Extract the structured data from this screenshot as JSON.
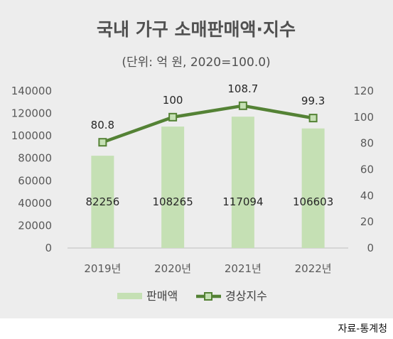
{
  "chart_data": {
    "type": "bar",
    "title": "국내 가구 소매판매액·지수",
    "subtitle": "(단위: 억 원, 2020=100.0)",
    "categories": [
      "2019년",
      "2020년",
      "2021년",
      "2022년"
    ],
    "series": [
      {
        "name": "판매액",
        "kind": "bar",
        "axis": "left",
        "color": "#c5e0b4",
        "values": [
          82256,
          108265,
          117094,
          106603
        ],
        "labels": [
          "82256",
          "108265",
          "117094",
          "106603"
        ]
      },
      {
        "name": "경상지수",
        "kind": "line",
        "axis": "right",
        "color": "#548235",
        "marker_fill": "#c5e0b4",
        "values": [
          80.8,
          100,
          108.7,
          99.3
        ],
        "labels": [
          "80.8",
          "100",
          "108.7",
          "99.3"
        ]
      }
    ],
    "y_left": {
      "min": 0,
      "max": 140000,
      "ticks": [
        "0",
        "20000",
        "40000",
        "60000",
        "80000",
        "100000",
        "120000",
        "140000"
      ]
    },
    "y_right": {
      "min": 0,
      "max": 120,
      "ticks": [
        "0",
        "20",
        "40",
        "60",
        "80",
        "100",
        "120"
      ]
    },
    "grid": false,
    "legend_position": "bottom"
  },
  "source": "자료-통계청"
}
